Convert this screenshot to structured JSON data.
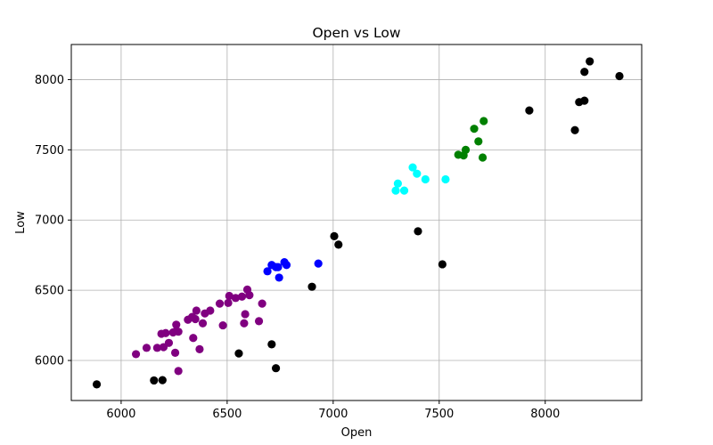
{
  "chart_data": {
    "type": "scatter",
    "title": "Open vs Low",
    "xlabel": "Open",
    "ylabel": "Low",
    "xlim": [
      5765,
      8455
    ],
    "ylim": [
      5715,
      8250
    ],
    "xticks": [
      6000,
      6500,
      7000,
      7500,
      8000
    ],
    "yticks": [
      6000,
      6500,
      7000,
      7500,
      8000
    ],
    "grid": true,
    "legend": "none",
    "series": [
      {
        "color": "#000000",
        "points": [
          [
            5885,
            5830
          ],
          [
            6155,
            5858
          ],
          [
            6195,
            5860
          ],
          [
            6555,
            6050
          ],
          [
            6710,
            6115
          ],
          [
            6730,
            5945
          ],
          [
            6900,
            6525
          ],
          [
            7005,
            6885
          ],
          [
            7025,
            6825
          ],
          [
            7400,
            6920
          ],
          [
            7515,
            6685
          ],
          [
            7925,
            7780
          ],
          [
            8140,
            7640
          ],
          [
            8160,
            7840
          ],
          [
            8185,
            8055
          ],
          [
            8185,
            7850
          ],
          [
            8210,
            8130
          ],
          [
            8350,
            8025
          ]
        ]
      },
      {
        "color": "#800080",
        "points": [
          [
            6070,
            6045
          ],
          [
            6120,
            6090
          ],
          [
            6170,
            6090
          ],
          [
            6190,
            6190
          ],
          [
            6200,
            6095
          ],
          [
            6210,
            6195
          ],
          [
            6225,
            6125
          ],
          [
            6245,
            6200
          ],
          [
            6255,
            6055
          ],
          [
            6260,
            6255
          ],
          [
            6260,
            6210
          ],
          [
            6270,
            6205
          ],
          [
            6270,
            5925
          ],
          [
            6315,
            6290
          ],
          [
            6335,
            6310
          ],
          [
            6340,
            6160
          ],
          [
            6350,
            6295
          ],
          [
            6355,
            6355
          ],
          [
            6370,
            6080
          ],
          [
            6385,
            6265
          ],
          [
            6395,
            6335
          ],
          [
            6420,
            6355
          ],
          [
            6465,
            6405
          ],
          [
            6480,
            6250
          ],
          [
            6505,
            6410
          ],
          [
            6510,
            6460
          ],
          [
            6540,
            6445
          ],
          [
            6570,
            6455
          ],
          [
            6580,
            6265
          ],
          [
            6585,
            6330
          ],
          [
            6595,
            6505
          ],
          [
            6605,
            6465
          ],
          [
            6650,
            6280
          ],
          [
            6665,
            6405
          ]
        ]
      },
      {
        "color": "#0000ff",
        "points": [
          [
            6690,
            6635
          ],
          [
            6710,
            6680
          ],
          [
            6730,
            6665
          ],
          [
            6740,
            6665
          ],
          [
            6745,
            6590
          ],
          [
            6770,
            6700
          ],
          [
            6780,
            6680
          ],
          [
            6930,
            6690
          ]
        ]
      },
      {
        "color": "#00ffff",
        "points": [
          [
            7295,
            7210
          ],
          [
            7305,
            7260
          ],
          [
            7335,
            7210
          ],
          [
            7375,
            7375
          ],
          [
            7395,
            7330
          ],
          [
            7435,
            7290
          ],
          [
            7530,
            7290
          ]
        ]
      },
      {
        "color": "#008000",
        "points": [
          [
            7590,
            7465
          ],
          [
            7615,
            7460
          ],
          [
            7625,
            7500
          ],
          [
            7665,
            7650
          ],
          [
            7685,
            7560
          ],
          [
            7705,
            7445
          ],
          [
            7710,
            7705
          ]
        ]
      }
    ]
  }
}
